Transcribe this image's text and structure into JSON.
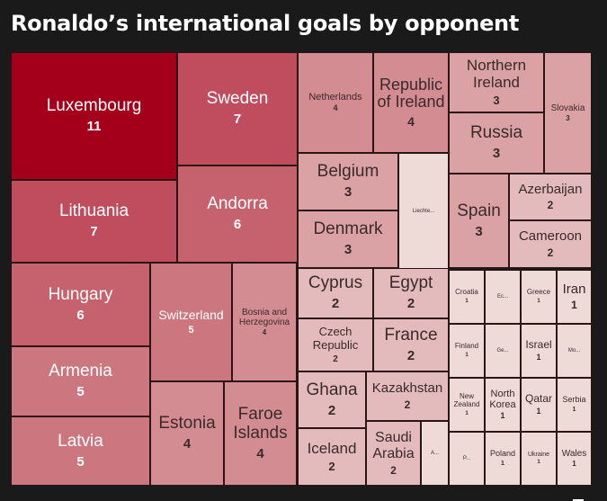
{
  "chart_data": {
    "type": "treemap",
    "title": "Ronaldo’s international goals by opponent",
    "items": [
      {
        "name": "Luxembourg",
        "value": 11
      },
      {
        "name": "Sweden",
        "value": 7
      },
      {
        "name": "Lithuania",
        "value": 7
      },
      {
        "name": "Andorra",
        "value": 6
      },
      {
        "name": "Hungary",
        "value": 6
      },
      {
        "name": "Armenia",
        "value": 5
      },
      {
        "name": "Latvia",
        "value": 5
      },
      {
        "name": "Switzerland",
        "value": 5
      },
      {
        "name": "Bosnia and Herzegovina",
        "value": 4
      },
      {
        "name": "Estonia",
        "value": 4
      },
      {
        "name": "Faroe Islands",
        "value": 4
      },
      {
        "name": "Netherlands",
        "value": 4
      },
      {
        "name": "Republic of Ireland",
        "value": 4
      },
      {
        "name": "Northern Ireland",
        "value": 3
      },
      {
        "name": "Slovakia",
        "value": 3
      },
      {
        "name": "Russia",
        "value": 3
      },
      {
        "name": "Belgium",
        "value": 3
      },
      {
        "name": "Liechte...",
        "value": null
      },
      {
        "name": "Azerbaijan",
        "value": 2
      },
      {
        "name": "Spain",
        "value": 3
      },
      {
        "name": "Cameroon",
        "value": 2
      },
      {
        "name": "Denmark",
        "value": 3
      },
      {
        "name": "Cyprus",
        "value": 2
      },
      {
        "name": "Egypt",
        "value": 2
      },
      {
        "name": "Czech Republic",
        "value": 2
      },
      {
        "name": "France",
        "value": 2
      },
      {
        "name": "Ghana",
        "value": 2
      },
      {
        "name": "Kazakhstan",
        "value": 2
      },
      {
        "name": "Iceland",
        "value": 2
      },
      {
        "name": "Saudi Arabia",
        "value": 2
      },
      {
        "name": "A...",
        "value": null
      },
      {
        "name": "Croatia",
        "value": 1
      },
      {
        "name": "Ec...",
        "value": null
      },
      {
        "name": "Greece",
        "value": 1
      },
      {
        "name": "Iran",
        "value": 1
      },
      {
        "name": "Finland",
        "value": 1
      },
      {
        "name": "Ge...",
        "value": null
      },
      {
        "name": "Israel",
        "value": 1
      },
      {
        "name": "Mo...",
        "value": null
      },
      {
        "name": "New Zealand",
        "value": 1
      },
      {
        "name": "North Korea",
        "value": 1
      },
      {
        "name": "Qatar",
        "value": 1
      },
      {
        "name": "Serbia",
        "value": 1
      },
      {
        "name": "P...",
        "value": null
      },
      {
        "name": "Poland",
        "value": 1
      },
      {
        "name": "Ukraine",
        "value": 1
      },
      {
        "name": "Wales",
        "value": 1
      }
    ],
    "color_scale": {
      "min_color": "#eedad6",
      "max_color": "#a5001b"
    }
  }
}
